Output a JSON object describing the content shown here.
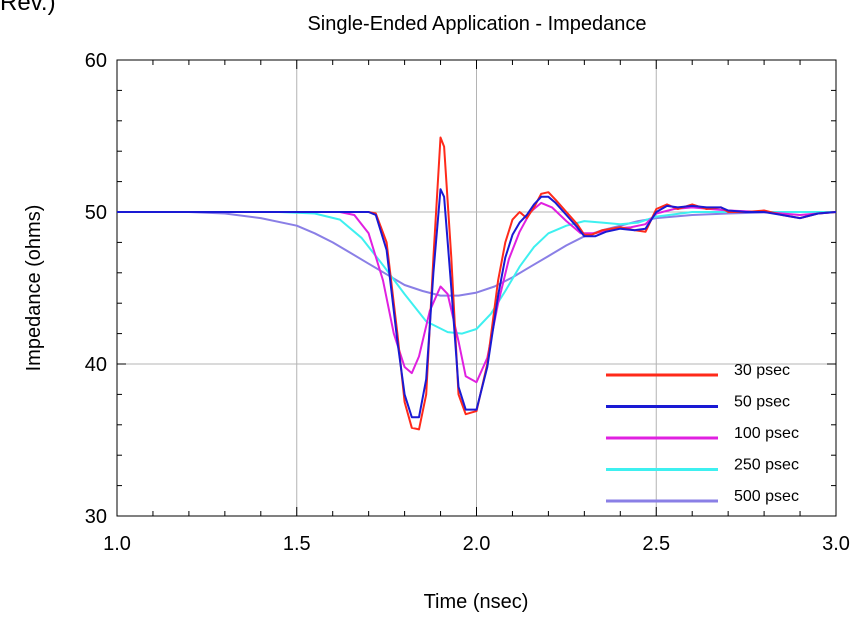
{
  "header_fragment": "Rev.)",
  "chart_data": {
    "type": "line",
    "title": "Single-Ended Application - Impedance",
    "xlabel": "Time (nsec)",
    "ylabel": "Impedance (ohms)",
    "xlim": [
      1.0,
      3.0
    ],
    "ylim": [
      30,
      60
    ],
    "xticks": [
      "1.0",
      "1.5",
      "2.0",
      "2.5",
      "3.0"
    ],
    "yticks": [
      "30",
      "40",
      "50",
      "60"
    ],
    "grid": true,
    "legend_position": "bottom-right",
    "series": [
      {
        "name": "30 psec",
        "color": "#ff2a1a",
        "points": [
          [
            1.0,
            50
          ],
          [
            1.7,
            50
          ],
          [
            1.72,
            49.9
          ],
          [
            1.75,
            48
          ],
          [
            1.78,
            42
          ],
          [
            1.8,
            37.5
          ],
          [
            1.82,
            35.8
          ],
          [
            1.84,
            35.7
          ],
          [
            1.86,
            38
          ],
          [
            1.88,
            47
          ],
          [
            1.9,
            54.9
          ],
          [
            1.91,
            54.3
          ],
          [
            1.93,
            47
          ],
          [
            1.95,
            38
          ],
          [
            1.97,
            36.7
          ],
          [
            2.0,
            36.9
          ],
          [
            2.03,
            40
          ],
          [
            2.06,
            45.5
          ],
          [
            2.08,
            48
          ],
          [
            2.1,
            49.5
          ],
          [
            2.12,
            50
          ],
          [
            2.14,
            49.6
          ],
          [
            2.16,
            50.3
          ],
          [
            2.18,
            51.2
          ],
          [
            2.2,
            51.3
          ],
          [
            2.22,
            50.8
          ],
          [
            2.25,
            50
          ],
          [
            2.28,
            49.2
          ],
          [
            2.3,
            48.5
          ],
          [
            2.32,
            48.5
          ],
          [
            2.35,
            48.8
          ],
          [
            2.4,
            49
          ],
          [
            2.44,
            48.8
          ],
          [
            2.47,
            48.7
          ],
          [
            2.5,
            50.2
          ],
          [
            2.53,
            50.5
          ],
          [
            2.56,
            50.2
          ],
          [
            2.6,
            50.5
          ],
          [
            2.64,
            50.2
          ],
          [
            2.68,
            50.3
          ],
          [
            2.7,
            50
          ],
          [
            2.75,
            50
          ],
          [
            2.8,
            50.1
          ],
          [
            2.85,
            49.8
          ],
          [
            2.9,
            49.6
          ],
          [
            2.95,
            49.9
          ],
          [
            3.0,
            50
          ]
        ]
      },
      {
        "name": "50 psec",
        "color": "#1a1ad4",
        "points": [
          [
            1.0,
            50
          ],
          [
            1.7,
            50
          ],
          [
            1.72,
            49.8
          ],
          [
            1.75,
            47.5
          ],
          [
            1.78,
            41.5
          ],
          [
            1.8,
            38
          ],
          [
            1.82,
            36.5
          ],
          [
            1.84,
            36.5
          ],
          [
            1.86,
            39
          ],
          [
            1.88,
            46
          ],
          [
            1.9,
            51.5
          ],
          [
            1.91,
            51
          ],
          [
            1.93,
            45
          ],
          [
            1.95,
            38.5
          ],
          [
            1.97,
            37
          ],
          [
            2.0,
            37
          ],
          [
            2.03,
            39.8
          ],
          [
            2.06,
            44.5
          ],
          [
            2.08,
            47
          ],
          [
            2.1,
            48.5
          ],
          [
            2.12,
            49.3
          ],
          [
            2.14,
            49.8
          ],
          [
            2.16,
            50.5
          ],
          [
            2.18,
            51
          ],
          [
            2.2,
            51
          ],
          [
            2.22,
            50.6
          ],
          [
            2.25,
            49.8
          ],
          [
            2.28,
            49
          ],
          [
            2.3,
            48.4
          ],
          [
            2.33,
            48.4
          ],
          [
            2.36,
            48.7
          ],
          [
            2.4,
            48.9
          ],
          [
            2.44,
            48.8
          ],
          [
            2.47,
            48.9
          ],
          [
            2.5,
            50
          ],
          [
            2.53,
            50.4
          ],
          [
            2.56,
            50.3
          ],
          [
            2.6,
            50.4
          ],
          [
            2.64,
            50.3
          ],
          [
            2.68,
            50.3
          ],
          [
            2.7,
            50.1
          ],
          [
            2.75,
            50
          ],
          [
            2.8,
            50
          ],
          [
            2.85,
            49.8
          ],
          [
            2.9,
            49.6
          ],
          [
            2.95,
            49.9
          ],
          [
            3.0,
            50
          ]
        ]
      },
      {
        "name": "100 psec",
        "color": "#e020e0",
        "points": [
          [
            1.0,
            50
          ],
          [
            1.62,
            50
          ],
          [
            1.66,
            49.8
          ],
          [
            1.7,
            48.6
          ],
          [
            1.74,
            45.5
          ],
          [
            1.77,
            42
          ],
          [
            1.8,
            39.8
          ],
          [
            1.82,
            39.4
          ],
          [
            1.84,
            40.5
          ],
          [
            1.87,
            43.5
          ],
          [
            1.9,
            45.1
          ],
          [
            1.92,
            44.6
          ],
          [
            1.95,
            41.5
          ],
          [
            1.97,
            39.2
          ],
          [
            2.0,
            38.8
          ],
          [
            2.03,
            40.4
          ],
          [
            2.06,
            44
          ],
          [
            2.09,
            46.9
          ],
          [
            2.12,
            48.7
          ],
          [
            2.15,
            50
          ],
          [
            2.18,
            50.6
          ],
          [
            2.21,
            50.3
          ],
          [
            2.25,
            49.4
          ],
          [
            2.29,
            48.6
          ],
          [
            2.33,
            48.6
          ],
          [
            2.38,
            48.9
          ],
          [
            2.43,
            49
          ],
          [
            2.47,
            49.2
          ],
          [
            2.5,
            49.9
          ],
          [
            2.55,
            50.2
          ],
          [
            2.6,
            50.3
          ],
          [
            2.65,
            50.2
          ],
          [
            2.7,
            50.1
          ],
          [
            2.8,
            50
          ],
          [
            2.9,
            49.8
          ],
          [
            3.0,
            50
          ]
        ]
      },
      {
        "name": "250 psec",
        "color": "#3ef0f0",
        "points": [
          [
            1.0,
            50
          ],
          [
            1.45,
            50
          ],
          [
            1.55,
            49.9
          ],
          [
            1.62,
            49.5
          ],
          [
            1.68,
            48.3
          ],
          [
            1.74,
            46.5
          ],
          [
            1.8,
            44.6
          ],
          [
            1.86,
            42.8
          ],
          [
            1.92,
            42.1
          ],
          [
            1.96,
            42
          ],
          [
            2.0,
            42.3
          ],
          [
            2.04,
            43.3
          ],
          [
            2.08,
            44.8
          ],
          [
            2.12,
            46.4
          ],
          [
            2.16,
            47.7
          ],
          [
            2.2,
            48.6
          ],
          [
            2.25,
            49.1
          ],
          [
            2.3,
            49.4
          ],
          [
            2.35,
            49.3
          ],
          [
            2.4,
            49.2
          ],
          [
            2.45,
            49.3
          ],
          [
            2.5,
            49.7
          ],
          [
            2.6,
            50
          ],
          [
            2.7,
            50
          ],
          [
            2.85,
            50
          ],
          [
            3.0,
            50
          ]
        ]
      },
      {
        "name": "500 psec",
        "color": "#8a7fe6",
        "points": [
          [
            1.0,
            50
          ],
          [
            1.2,
            50
          ],
          [
            1.3,
            49.9
          ],
          [
            1.4,
            49.6
          ],
          [
            1.5,
            49.1
          ],
          [
            1.55,
            48.6
          ],
          [
            1.6,
            48
          ],
          [
            1.65,
            47.3
          ],
          [
            1.7,
            46.6
          ],
          [
            1.75,
            45.9
          ],
          [
            1.8,
            45.2
          ],
          [
            1.85,
            44.8
          ],
          [
            1.9,
            44.5
          ],
          [
            1.95,
            44.5
          ],
          [
            2.0,
            44.7
          ],
          [
            2.05,
            45.1
          ],
          [
            2.1,
            45.7
          ],
          [
            2.15,
            46.4
          ],
          [
            2.2,
            47.1
          ],
          [
            2.25,
            47.8
          ],
          [
            2.3,
            48.4
          ],
          [
            2.35,
            48.8
          ],
          [
            2.4,
            49.1
          ],
          [
            2.45,
            49.4
          ],
          [
            2.5,
            49.6
          ],
          [
            2.6,
            49.8
          ],
          [
            2.7,
            49.9
          ],
          [
            2.85,
            50
          ],
          [
            3.0,
            50
          ]
        ]
      }
    ]
  }
}
